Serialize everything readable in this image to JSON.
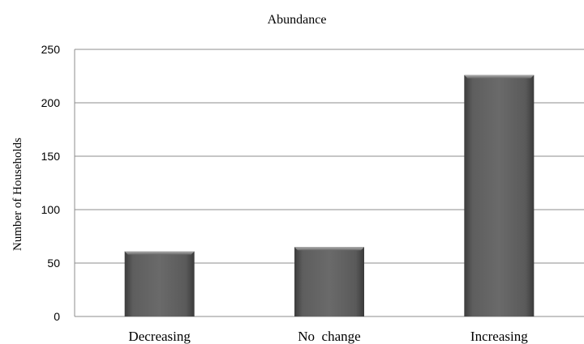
{
  "chart_data": {
    "type": "bar",
    "title": "Abundance",
    "xlabel": "",
    "ylabel": "Number of Households",
    "categories": [
      "Decreasing",
      "No  change",
      "Increasing"
    ],
    "values": [
      61,
      65,
      226
    ],
    "ylim": [
      0,
      250
    ],
    "yticks": [
      0,
      50,
      100,
      150,
      200,
      250
    ],
    "grid": true,
    "legend": "none",
    "bar_color": "#555555"
  }
}
